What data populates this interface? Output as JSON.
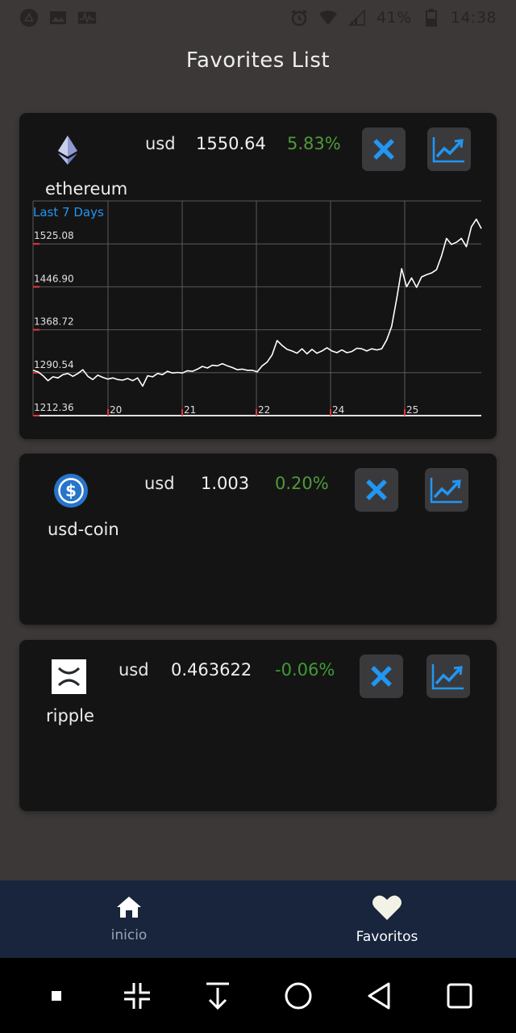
{
  "status_bar": {
    "battery_percent": "41%",
    "time": "14:38",
    "left_icons": [
      "app-icon",
      "image-icon",
      "activity-icon"
    ],
    "right_icons": [
      "alarm-icon",
      "wifi-icon",
      "signal-icon",
      "battery-icon"
    ]
  },
  "page": {
    "title": "Favorites List"
  },
  "colors": {
    "background": "#3b3837",
    "card": "#151414",
    "accent_blue": "#2196f3",
    "positive": "#4e9a3a",
    "nav_bg": "#18253c"
  },
  "favorites": [
    {
      "name": "ethereum",
      "currency": "usd",
      "price": "1550.64",
      "change": "5.83%",
      "logo": "ethereum-icon",
      "remove_icon": "close-icon",
      "chart_icon": "trend-chart-icon"
    },
    {
      "name": "usd-coin",
      "currency": "usd",
      "price": "1.003",
      "change": "0.20%",
      "logo": "usdc-icon",
      "remove_icon": "close-icon",
      "chart_icon": "trend-chart-icon"
    },
    {
      "name": "ripple",
      "currency": "usd",
      "price": "0.463622",
      "change": "-0.06%",
      "logo": "xrp-icon",
      "remove_icon": "close-icon",
      "chart_icon": "trend-chart-icon"
    }
  ],
  "chart_data": {
    "type": "line",
    "title": "Last 7 Days",
    "xlabel": "",
    "ylabel": "",
    "grid": true,
    "ylim": [
      1212.36,
      1603.26
    ],
    "yticks": [
      "1212.36",
      "1290.54",
      "1368.72",
      "1446.90",
      "1525.08"
    ],
    "xticks": [
      "20",
      "21",
      "22",
      "24",
      "25"
    ],
    "series": [
      {
        "values": [
          1295,
          1292,
          1285,
          1276,
          1283,
          1281,
          1287,
          1289,
          1284,
          1289,
          1296,
          1284,
          1278,
          1286,
          1282,
          1279,
          1281,
          1278,
          1277,
          1280,
          1276,
          1281,
          1266,
          1285,
          1283,
          1289,
          1287,
          1293,
          1290,
          1291,
          1290,
          1294,
          1293,
          1297,
          1302,
          1299,
          1304,
          1303,
          1307,
          1303,
          1300,
          1296,
          1297,
          1295,
          1295,
          1292,
          1303,
          1310,
          1323,
          1349,
          1340,
          1333,
          1330,
          1326,
          1334,
          1325,
          1333,
          1326,
          1330,
          1336,
          1330,
          1327,
          1332,
          1327,
          1329,
          1335,
          1334,
          1330,
          1334,
          1332,
          1334,
          1350,
          1375,
          1425,
          1480,
          1447,
          1463,
          1446,
          1465,
          1469,
          1472,
          1478,
          1503,
          1535,
          1524,
          1528,
          1535,
          1520,
          1556,
          1570,
          1553
        ]
      }
    ]
  },
  "bottom_nav": {
    "items": [
      {
        "label": "inicio",
        "icon": "home-icon",
        "active": false
      },
      {
        "label": "Favoritos",
        "icon": "heart-icon",
        "active": true
      }
    ]
  },
  "system_nav": [
    "menu-dot-icon",
    "collapse-icon",
    "download-icon",
    "home-circle-icon",
    "back-icon",
    "recents-icon"
  ]
}
